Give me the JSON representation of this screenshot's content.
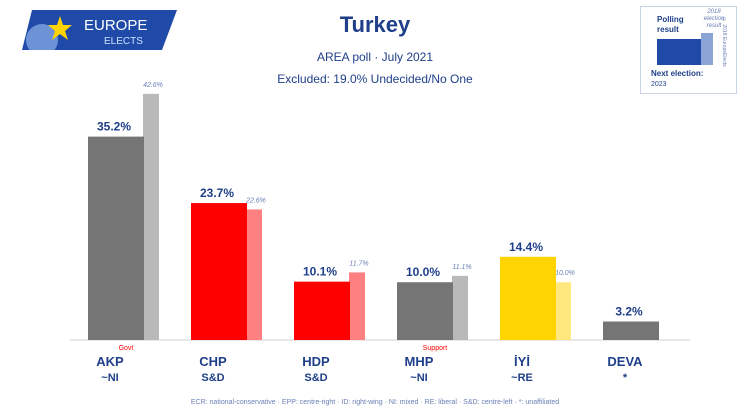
{
  "logo": {
    "line1": "EUROPE",
    "line2": "ELECTS"
  },
  "header": {
    "title": "Turkey",
    "subtitle": "AREA poll · July 2021",
    "excluded": "Excluded: 19.0% Undecided/No One"
  },
  "legend": {
    "polling": "Polling result",
    "previous": "2018 election result",
    "copyright": "© 2018 EuropeElects",
    "next_election": "Next election:",
    "next_year": "2023"
  },
  "colors": {
    "AKP": {
      "main": "#757575",
      "prev": "#b9b9b9"
    },
    "CHP": {
      "main": "#ff0000",
      "prev": "#ff8080"
    },
    "HDP": {
      "main": "#ff0000",
      "prev": "#ff8080"
    },
    "MHP": {
      "main": "#757575",
      "prev": "#b9b9b9"
    },
    "IYI": {
      "main": "#ffd400",
      "prev": "#ffe97f"
    },
    "DEVA": {
      "main": "#757575",
      "prev": "#b9b9b9"
    }
  },
  "chart_data": {
    "type": "bar",
    "categories": [
      "AKP",
      "CHP",
      "HDP",
      "MHP",
      "İYİ",
      "DEVA"
    ],
    "affiliations": [
      "~NI",
      "S&D",
      "S&D",
      "~NI",
      "~RE",
      "*"
    ],
    "roles": [
      "Govt",
      "",
      "",
      "Support",
      "",
      ""
    ],
    "series": [
      {
        "name": "Polling result",
        "values": [
          35.2,
          23.7,
          10.1,
          10.0,
          14.4,
          3.2
        ]
      },
      {
        "name": "2018 election result",
        "values": [
          42.6,
          22.6,
          11.7,
          11.1,
          10.0,
          null
        ]
      }
    ],
    "value_labels": [
      "35.2%",
      "23.7%",
      "10.1%",
      "10.0%",
      "14.4%",
      "3.2%"
    ],
    "prev_labels": [
      "42.6%",
      "22.6%",
      "11.7%",
      "11.1%",
      "10.0%",
      ""
    ],
    "ylim": [
      0,
      45
    ]
  },
  "footnote": "ECR: national-conservative · EPP: centre-right · ID: right-wing · NI: mixed · RE: liberal · S&D: centre-left · *: unaffiliated"
}
